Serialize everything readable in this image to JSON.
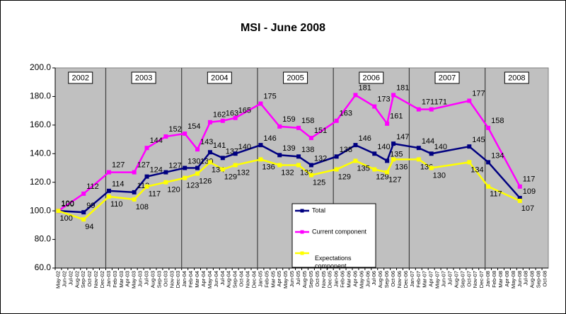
{
  "chart_data": {
    "type": "line",
    "title": "MSI - June 2008",
    "categories": [
      "May-02",
      "Jun-02",
      "Jul-02",
      "Aug-02",
      "Sep-02",
      "Oct-02",
      "Nov-02",
      "Dec-02",
      "Jan-03",
      "Feb-03",
      "Mar-03",
      "Apr-03",
      "May-03",
      "Jun-03",
      "Jul-03",
      "Aug-03",
      "Sep-03",
      "Oct-03",
      "Nov-03",
      "Dec-03",
      "Jan-04",
      "Feb-04",
      "Mar-04",
      "Apr-04",
      "May-04",
      "Jun-04",
      "Jul-04",
      "Aug-04",
      "Sep-04",
      "Oct-04",
      "Nov-04",
      "Dec-04",
      "Jan-05",
      "Feb-05",
      "Mar-05",
      "Apr-05",
      "May-05",
      "Jun-05",
      "Jul-05",
      "Aug-05",
      "Sep-05",
      "Oct-05",
      "Nov-05",
      "Dec-05",
      "Jan-06",
      "Feb-06",
      "Mar-06",
      "Apr-06",
      "May-06",
      "Jun-06",
      "Jul-06",
      "Aug-06",
      "Sep-06",
      "Oct-06",
      "Nov-06",
      "Dec-06",
      "Jan-07",
      "Feb-07",
      "Mar-07",
      "Apr-07",
      "May-07",
      "Jun-07",
      "Jul-07",
      "Aug-07",
      "Sep-07",
      "Oct-07",
      "Nov-07",
      "Dec-07",
      "Jan-08",
      "Feb-08",
      "Mar-08",
      "Apr-08",
      "May-08",
      "Jun-08",
      "Jul-08",
      "Aug-08",
      "Sep-08",
      "Oct-08"
    ],
    "year_labels": [
      "2002",
      "2003",
      "2004",
      "2005",
      "2006",
      "2007",
      "2008"
    ],
    "x": [
      "May-02",
      "Sep-02",
      "Jan-03",
      "May-03",
      "Jul-03",
      "Oct-03",
      "Jan-04",
      "Mar-04",
      "May-04",
      "Jul-04",
      "Sep-04",
      "Jan-05",
      "Apr-05",
      "Jul-05",
      "Sep-05",
      "Jan-06",
      "Apr-06",
      "Jul-06",
      "Sep-06",
      "Oct-06",
      "Feb-07",
      "Apr-07",
      "Oct-07",
      "Jan-08",
      "Jun-08"
    ],
    "series": [
      {
        "name": "Total",
        "color": "#000080",
        "values": [
          100,
          99,
          114,
          113,
          124,
          127,
          130,
          130,
          141,
          137,
          140,
          146,
          139,
          138,
          132,
          138,
          146,
          140,
          135,
          147,
          144,
          140,
          145,
          134,
          109
        ]
      },
      {
        "name": "Current component",
        "color": "#ff00ff",
        "values": [
          100,
          112,
          127,
          127,
          144,
          152,
          154,
          143,
          162,
          163,
          165,
          175,
          159,
          158,
          151,
          163,
          181,
          173,
          161,
          181,
          171,
          171,
          177,
          158,
          117
        ]
      },
      {
        "name": "Expectations component",
        "color": "#ffff00",
        "values": [
          100,
          94,
          110,
          108,
          117,
          120,
          123,
          126,
          134,
          129,
          132,
          136,
          132,
          132,
          125,
          129,
          135,
          129,
          127,
          136,
          136,
          130,
          134,
          117,
          107
        ]
      }
    ],
    "ylim": [
      60,
      200
    ],
    "yticks": [
      {
        "value": 60,
        "label": "60.0"
      },
      {
        "value": 80,
        "label": "80.0"
      },
      {
        "value": 100,
        "label": "100.0"
      },
      {
        "value": 120,
        "label": "120.0"
      },
      {
        "value": 140,
        "label": "140.0"
      },
      {
        "value": 160,
        "label": "160.0"
      },
      {
        "value": 180,
        "label": "180.0"
      },
      {
        "value": 200,
        "label": "200.0"
      }
    ],
    "grid": false
  }
}
